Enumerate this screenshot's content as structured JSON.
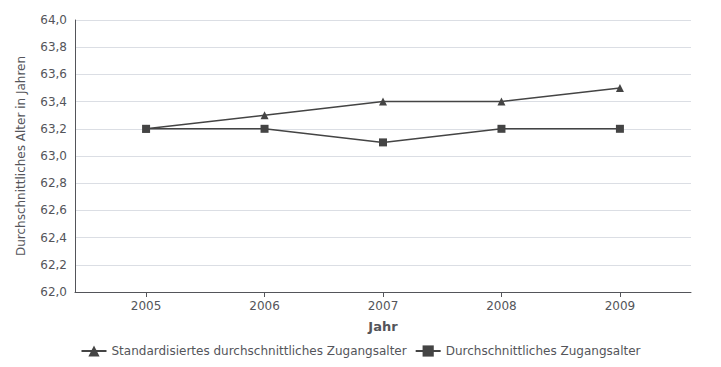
{
  "chart_data": {
    "type": "line",
    "xlabel": "Jahr",
    "ylabel": "Durchschnittliches Alter in Jahren",
    "x": [
      2005,
      2006,
      2007,
      2008,
      2009
    ],
    "series": [
      {
        "name": "Standardisiertes durchschnittliches Zugangsalter",
        "color": "#444444",
        "marker": "triangle",
        "values": [
          63.2,
          63.3,
          63.4,
          63.4,
          63.5
        ]
      },
      {
        "name": "Durchschnittliches Zugangsalter",
        "color": "#444444",
        "marker": "square",
        "values": [
          63.2,
          63.2,
          63.1,
          63.2,
          63.2
        ]
      }
    ],
    "xlim": [
      2004.4,
      2009.6
    ],
    "xticks": [
      2005,
      2006,
      2007,
      2008,
      2009
    ],
    "ylim": [
      62.0,
      64.0
    ],
    "yticks": [
      {
        "value": 62.0,
        "label": "62,0"
      },
      {
        "value": 62.2,
        "label": "62,2"
      },
      {
        "value": 62.4,
        "label": "62,4"
      },
      {
        "value": 62.6,
        "label": "62,6"
      },
      {
        "value": 62.8,
        "label": "62,8"
      },
      {
        "value": 63.0,
        "label": "63,0"
      },
      {
        "value": 63.2,
        "label": "63,2"
      },
      {
        "value": 63.4,
        "label": "63,4"
      },
      {
        "value": 63.6,
        "label": "63,6"
      },
      {
        "value": 63.8,
        "label": "63,8"
      },
      {
        "value": 64.0,
        "label": "64,0"
      }
    ],
    "grid": "y",
    "legend": "bottom"
  }
}
